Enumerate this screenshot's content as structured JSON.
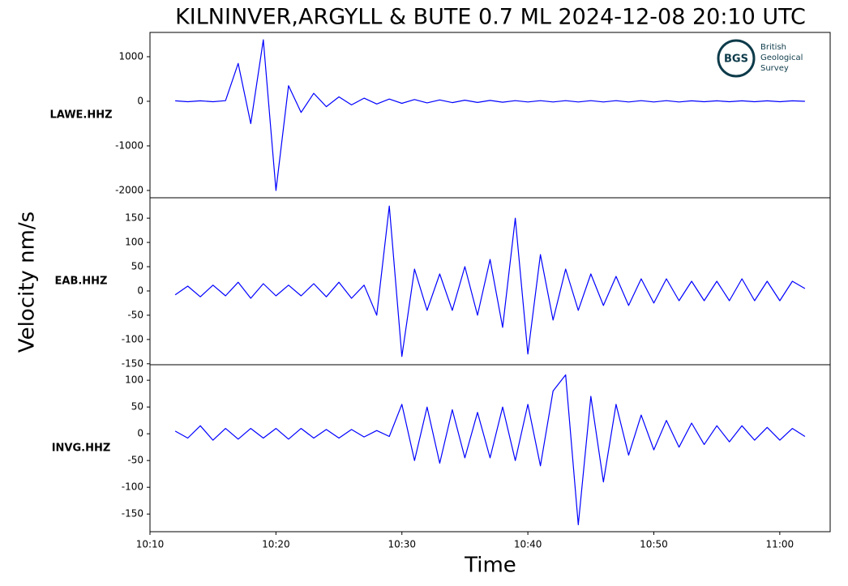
{
  "figure": {
    "title": "KILNINVER,ARGYLL & BUTE 0.7 ML   2024-12-08 20:10 UTC",
    "ylabel": "Velocity nm/s",
    "xlabel": "Time"
  },
  "logo": {
    "mark": "BGS",
    "line1": "British",
    "line2": "Geological",
    "line3": "Survey"
  },
  "chart_data": [
    {
      "type": "line",
      "label": "LAWE.HHZ",
      "color": "#0000ff",
      "x": [
        "10:12",
        "10:13",
        "10:14",
        "10:15",
        "10:16",
        "10:17",
        "10:18",
        "10:19",
        "10:20",
        "10:21",
        "10:22",
        "10:23",
        "10:24",
        "10:25",
        "10:26",
        "10:27",
        "10:28",
        "10:29",
        "10:30",
        "10:31",
        "10:32",
        "10:33",
        "10:34",
        "10:35",
        "10:36",
        "10:37",
        "10:38",
        "10:39",
        "10:40",
        "10:41",
        "10:42",
        "10:43",
        "10:44",
        "10:45",
        "10:46",
        "10:47",
        "10:48",
        "10:49",
        "10:50",
        "10:51",
        "10:52",
        "10:53",
        "10:54",
        "10:55",
        "10:56",
        "10:57",
        "10:58",
        "10:59",
        "11:00",
        "11:01",
        "11:02"
      ],
      "values": [
        10,
        -10,
        10,
        -10,
        15,
        850,
        -500,
        1380,
        -2000,
        350,
        -250,
        180,
        -120,
        100,
        -80,
        70,
        -60,
        50,
        -45,
        40,
        -35,
        30,
        -30,
        25,
        -25,
        20,
        -20,
        15,
        -15,
        15,
        -15,
        15,
        -15,
        15,
        -15,
        15,
        -15,
        15,
        -15,
        15,
        -15,
        10,
        -10,
        10,
        -10,
        10,
        -10,
        10,
        -10,
        10,
        0
      ],
      "xlim": [
        "10:10",
        "11:04"
      ],
      "ylim": [
        -2164,
        1545
      ],
      "yticks": [
        -2000,
        -1000,
        0,
        1000
      ]
    },
    {
      "type": "line",
      "label": "EAB.HHZ",
      "color": "#0000ff",
      "x": [
        "10:12",
        "10:13",
        "10:14",
        "10:15",
        "10:16",
        "10:17",
        "10:18",
        "10:19",
        "10:20",
        "10:21",
        "10:22",
        "10:23",
        "10:24",
        "10:25",
        "10:26",
        "10:27",
        "10:28",
        "10:29",
        "10:30",
        "10:31",
        "10:32",
        "10:33",
        "10:34",
        "10:35",
        "10:36",
        "10:37",
        "10:38",
        "10:39",
        "10:40",
        "10:41",
        "10:42",
        "10:43",
        "10:44",
        "10:45",
        "10:46",
        "10:47",
        "10:48",
        "10:49",
        "10:50",
        "10:51",
        "10:52",
        "10:53",
        "10:54",
        "10:55",
        "10:56",
        "10:57",
        "10:58",
        "10:59",
        "11:00",
        "11:01",
        "11:02"
      ],
      "values": [
        -8,
        10,
        -12,
        12,
        -10,
        18,
        -15,
        15,
        -10,
        12,
        -10,
        15,
        -12,
        18,
        -15,
        12,
        -50,
        175,
        -135,
        45,
        -40,
        35,
        -40,
        50,
        -50,
        65,
        -75,
        150,
        -130,
        75,
        -60,
        45,
        -40,
        35,
        -30,
        30,
        -30,
        25,
        -25,
        25,
        -20,
        20,
        -20,
        20,
        -20,
        25,
        -20,
        20,
        -20,
        20,
        5
      ],
      "xlim": [
        "10:10",
        "11:04"
      ],
      "ylim": [
        -152,
        192
      ],
      "yticks": [
        -150,
        -100,
        -50,
        0,
        50,
        100,
        150
      ]
    },
    {
      "type": "line",
      "label": "INVG.HHZ",
      "color": "#0000ff",
      "x": [
        "10:12",
        "10:13",
        "10:14",
        "10:15",
        "10:16",
        "10:17",
        "10:18",
        "10:19",
        "10:20",
        "10:21",
        "10:22",
        "10:23",
        "10:24",
        "10:25",
        "10:26",
        "10:27",
        "10:28",
        "10:29",
        "10:30",
        "10:31",
        "10:32",
        "10:33",
        "10:34",
        "10:35",
        "10:36",
        "10:37",
        "10:38",
        "10:39",
        "10:40",
        "10:41",
        "10:42",
        "10:43",
        "10:44",
        "10:45",
        "10:46",
        "10:47",
        "10:48",
        "10:49",
        "10:50",
        "10:51",
        "10:52",
        "10:53",
        "10:54",
        "10:55",
        "10:56",
        "10:57",
        "10:58",
        "10:59",
        "11:00",
        "11:01",
        "11:02"
      ],
      "values": [
        5,
        -8,
        15,
        -12,
        10,
        -10,
        10,
        -8,
        10,
        -10,
        10,
        -8,
        8,
        -8,
        8,
        -6,
        6,
        -5,
        55,
        -50,
        50,
        -55,
        45,
        -45,
        40,
        -45,
        50,
        -50,
        55,
        -60,
        80,
        110,
        -170,
        70,
        -90,
        55,
        -40,
        35,
        -30,
        25,
        -25,
        20,
        -20,
        15,
        -15,
        15,
        -12,
        12,
        -12,
        10,
        -5
      ],
      "xlim": [
        "10:10",
        "11:04"
      ],
      "ylim": [
        -183,
        129
      ],
      "yticks": [
        -150,
        -100,
        -50,
        0,
        50,
        100
      ],
      "xticks": [
        "10:10",
        "10:20",
        "10:30",
        "10:40",
        "10:50",
        "11:00"
      ]
    }
  ]
}
